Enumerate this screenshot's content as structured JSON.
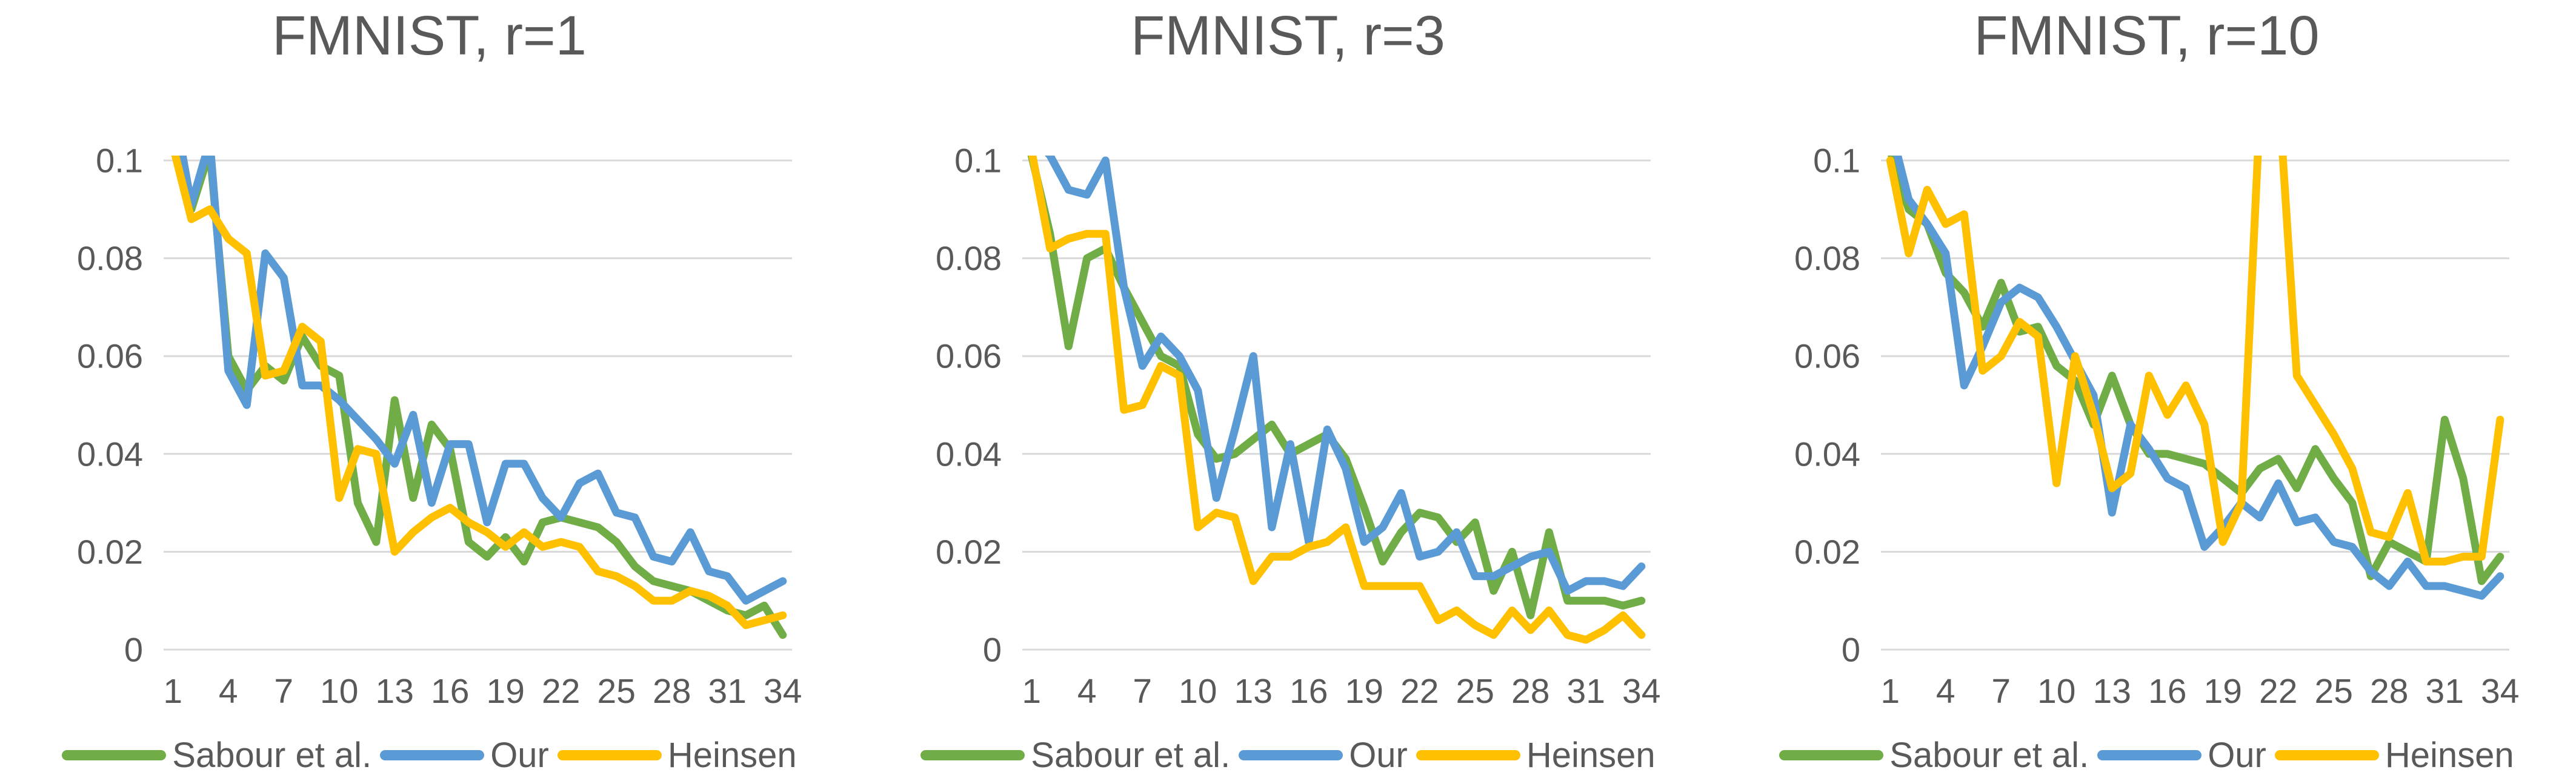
{
  "chart_data": [
    {
      "type": "line",
      "title": "FMNIST, r=1",
      "xlabel": "",
      "ylabel": "",
      "x_count": 34,
      "x_tick_labels": [
        "1",
        "4",
        "7",
        "10",
        "13",
        "16",
        "19",
        "22",
        "25",
        "28",
        "31",
        "34"
      ],
      "x_tick_values": [
        1,
        4,
        7,
        10,
        13,
        16,
        19,
        22,
        25,
        28,
        31,
        34
      ],
      "y_tick_labels": [
        "0.1",
        "0.08",
        "0.06",
        "0.04",
        "0.02",
        "0"
      ],
      "y_tick_values": [
        0.1,
        0.08,
        0.06,
        0.04,
        0.02,
        0
      ],
      "ylim": [
        0,
        0.1
      ],
      "grid": true,
      "legend_position": "bottom",
      "gridline_color": "#D9D9D9",
      "text_color": "#595959",
      "series": [
        {
          "name": "Sabour et al.",
          "color": "#70AD47",
          "values": [
            0.104,
            0.09,
            0.102,
            0.06,
            0.053,
            0.058,
            0.055,
            0.064,
            0.058,
            0.056,
            0.03,
            0.022,
            0.051,
            0.031,
            0.046,
            0.041,
            0.022,
            0.019,
            0.023,
            0.018,
            0.026,
            0.027,
            0.026,
            0.025,
            0.022,
            0.017,
            0.014,
            0.013,
            0.012,
            0.01,
            0.008,
            0.007,
            0.009,
            0.003
          ]
        },
        {
          "name": "Our",
          "color": "#5B9BD5",
          "values": [
            0.112,
            0.091,
            0.104,
            0.057,
            0.05,
            0.081,
            0.076,
            0.054,
            0.054,
            0.051,
            0.047,
            0.043,
            0.038,
            0.048,
            0.03,
            0.042,
            0.042,
            0.026,
            0.038,
            0.038,
            0.031,
            0.027,
            0.034,
            0.036,
            0.028,
            0.027,
            0.019,
            0.018,
            0.024,
            0.016,
            0.015,
            0.01,
            0.012,
            0.014
          ]
        },
        {
          "name": "Heinsen",
          "color": "#FFC000",
          "values": [
            0.103,
            0.088,
            0.09,
            0.084,
            0.081,
            0.056,
            0.057,
            0.066,
            0.063,
            0.031,
            0.041,
            0.04,
            0.02,
            0.024,
            0.027,
            0.029,
            0.026,
            0.024,
            0.021,
            0.024,
            0.021,
            0.022,
            0.021,
            0.016,
            0.015,
            0.013,
            0.01,
            0.01,
            0.012,
            0.011,
            0.009,
            0.005,
            0.006,
            0.007
          ]
        }
      ]
    },
    {
      "type": "line",
      "title": "FMNIST, r=3",
      "xlabel": "",
      "ylabel": "",
      "x_count": 34,
      "x_tick_labels": [
        "1",
        "4",
        "7",
        "10",
        "13",
        "16",
        "19",
        "22",
        "25",
        "28",
        "31",
        "34"
      ],
      "x_tick_values": [
        1,
        4,
        7,
        10,
        13,
        16,
        19,
        22,
        25,
        28,
        31,
        34
      ],
      "y_tick_labels": [
        "0.1",
        "0.08",
        "0.06",
        "0.04",
        "0.02",
        "0"
      ],
      "y_tick_values": [
        0.1,
        0.08,
        0.06,
        0.04,
        0.02,
        0
      ],
      "ylim": [
        0,
        0.1
      ],
      "grid": true,
      "legend_position": "bottom",
      "gridline_color": "#D9D9D9",
      "text_color": "#595959",
      "series": [
        {
          "name": "Sabour et al.",
          "color": "#70AD47",
          "values": [
            0.101,
            0.085,
            0.062,
            0.08,
            0.082,
            0.074,
            0.067,
            0.06,
            0.058,
            0.044,
            0.039,
            0.04,
            0.043,
            0.046,
            0.04,
            0.042,
            0.044,
            0.039,
            0.029,
            0.018,
            0.024,
            0.028,
            0.027,
            0.022,
            0.026,
            0.012,
            0.02,
            0.007,
            0.024,
            0.01,
            0.01,
            0.01,
            0.009,
            0.01
          ]
        },
        {
          "name": "Our",
          "color": "#5B9BD5",
          "values": [
            0.105,
            0.101,
            0.094,
            0.093,
            0.1,
            0.074,
            0.058,
            0.064,
            0.06,
            0.053,
            0.031,
            0.045,
            0.06,
            0.025,
            0.042,
            0.022,
            0.045,
            0.037,
            0.022,
            0.025,
            0.032,
            0.019,
            0.02,
            0.024,
            0.015,
            0.015,
            0.017,
            0.019,
            0.02,
            0.012,
            0.014,
            0.014,
            0.013,
            0.017
          ]
        },
        {
          "name": "Heinsen",
          "color": "#FFC000",
          "values": [
            0.102,
            0.082,
            0.084,
            0.085,
            0.085,
            0.049,
            0.05,
            0.058,
            0.056,
            0.025,
            0.028,
            0.027,
            0.014,
            0.019,
            0.019,
            0.021,
            0.022,
            0.025,
            0.013,
            0.013,
            0.013,
            0.013,
            0.006,
            0.008,
            0.005,
            0.003,
            0.008,
            0.004,
            0.008,
            0.003,
            0.002,
            0.004,
            0.007,
            0.003
          ]
        }
      ]
    },
    {
      "type": "line",
      "title": "FMNIST, r=10",
      "xlabel": "",
      "ylabel": "",
      "x_count": 34,
      "x_tick_labels": [
        "1",
        "4",
        "7",
        "10",
        "13",
        "16",
        "19",
        "22",
        "25",
        "28",
        "31",
        "34"
      ],
      "x_tick_values": [
        1,
        4,
        7,
        10,
        13,
        16,
        19,
        22,
        25,
        28,
        31,
        34
      ],
      "y_tick_labels": [
        "0.1",
        "0.08",
        "0.06",
        "0.04",
        "0.02",
        "0"
      ],
      "y_tick_values": [
        0.1,
        0.08,
        0.06,
        0.04,
        0.02,
        0
      ],
      "ylim": [
        0,
        0.1
      ],
      "grid": true,
      "legend_position": "bottom",
      "gridline_color": "#D9D9D9",
      "text_color": "#595959",
      "series": [
        {
          "name": "Sabour et al.",
          "color": "#70AD47",
          "values": [
            0.102,
            0.09,
            0.087,
            0.077,
            0.073,
            0.066,
            0.075,
            0.065,
            0.066,
            0.058,
            0.055,
            0.046,
            0.056,
            0.046,
            0.04,
            0.04,
            0.039,
            0.038,
            0.035,
            0.032,
            0.037,
            0.039,
            0.033,
            0.041,
            0.035,
            0.03,
            0.015,
            0.022,
            0.02,
            0.018,
            0.047,
            0.035,
            0.014,
            0.019
          ]
        },
        {
          "name": "Our",
          "color": "#5B9BD5",
          "values": [
            0.107,
            0.092,
            0.087,
            0.081,
            0.054,
            0.062,
            0.071,
            0.074,
            0.072,
            0.066,
            0.059,
            0.052,
            0.028,
            0.046,
            0.041,
            0.035,
            0.033,
            0.021,
            0.025,
            0.03,
            0.027,
            0.034,
            0.026,
            0.027,
            0.022,
            0.021,
            0.016,
            0.013,
            0.018,
            0.013,
            0.013,
            0.012,
            0.011,
            0.015
          ]
        },
        {
          "name": "Heinsen",
          "color": "#FFC000",
          "values": [
            0.1,
            0.081,
            0.094,
            0.087,
            0.089,
            0.057,
            0.06,
            0.067,
            0.064,
            0.034,
            0.06,
            0.048,
            0.033,
            0.036,
            0.056,
            0.048,
            0.054,
            0.046,
            0.022,
            0.03,
            0.11,
            0.115,
            0.056,
            0.05,
            0.044,
            0.037,
            0.024,
            0.023,
            0.032,
            0.018,
            0.018,
            0.019,
            0.019,
            0.047
          ]
        }
      ]
    }
  ]
}
